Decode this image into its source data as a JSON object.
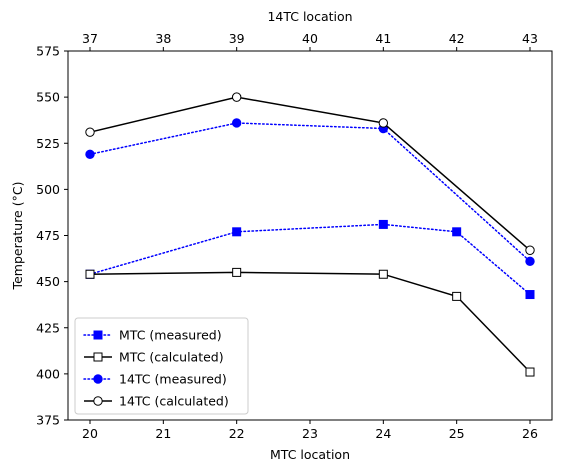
{
  "chart_data": {
    "type": "line",
    "xlabel": "MTC location",
    "x2label": "14TC location",
    "ylabel": "Temperature (°C)",
    "ylim": [
      375,
      575
    ],
    "yticks": [
      375,
      400,
      425,
      450,
      475,
      500,
      525,
      550,
      575
    ],
    "xlim": [
      19.7,
      26.3
    ],
    "xticks": [
      "20",
      "21",
      "22",
      "23",
      "24",
      "25",
      "26"
    ],
    "x2ticks": [
      "37",
      "38",
      "39",
      "40",
      "41",
      "42",
      "43"
    ],
    "grid": false,
    "legend_position": "lower-left",
    "series": [
      {
        "name": "MTC (measured)",
        "color": "#0000ff",
        "linestyle": "dotted",
        "marker": "square",
        "marker_fill": "#0000ff",
        "x": [
          20,
          22,
          24,
          25,
          26
        ],
        "y": [
          454,
          477,
          481,
          477,
          443
        ]
      },
      {
        "name": "MTC (calculated)",
        "color": "#000000",
        "linestyle": "solid",
        "marker": "square",
        "marker_fill": "#ffffff",
        "x": [
          20,
          22,
          24,
          25,
          26
        ],
        "y": [
          454,
          455,
          454,
          442,
          401
        ]
      },
      {
        "name": "14TC (measured)",
        "color": "#0000ff",
        "linestyle": "dotted",
        "marker": "circle",
        "marker_fill": "#0000ff",
        "x": [
          20,
          22,
          24,
          26
        ],
        "y": [
          519,
          536,
          533,
          461
        ]
      },
      {
        "name": "14TC (calculated)",
        "color": "#000000",
        "linestyle": "solid",
        "marker": "circle",
        "marker_fill": "#ffffff",
        "x": [
          20,
          22,
          24,
          26
        ],
        "y": [
          531,
          550,
          536,
          467
        ]
      }
    ]
  }
}
